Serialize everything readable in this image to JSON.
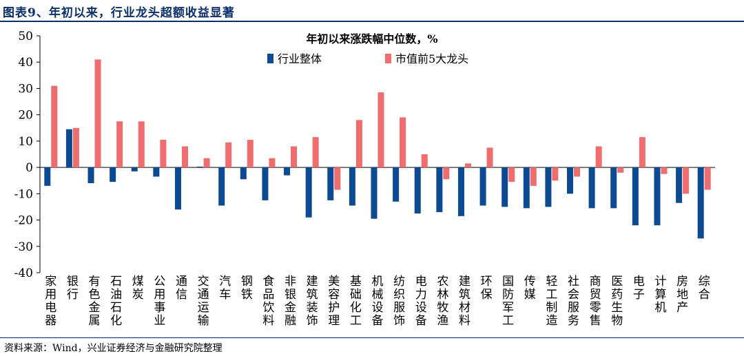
{
  "figure_title": "图表9、年初以来，行业龙头超额收益显著",
  "source": "资料来源：Wind，兴业证券经济与金融研究院整理",
  "colors": {
    "industry": "#0c4a93",
    "leaders": "#ef6c6f",
    "title": "#0a2f6b"
  },
  "chart_data": {
    "type": "bar",
    "title": "年初以来涨跌幅中位数，%",
    "xlabel": "",
    "ylabel": "",
    "ylim": [
      -40,
      50
    ],
    "yticks": [
      -40,
      -30,
      -20,
      -10,
      0,
      10,
      20,
      30,
      40,
      50
    ],
    "ytick_labels": [
      "-40",
      "-30",
      "-20",
      "-10",
      "0",
      "10",
      "20",
      "30",
      "40",
      "50"
    ],
    "legend_position": "top-center",
    "grid": false,
    "categories": [
      "家用电器",
      "银行",
      "有色金属",
      "石油石化",
      "煤炭",
      "公用事业",
      "通信",
      "交通运输",
      "汽车",
      "钢铁",
      "食品饮料",
      "非银金融",
      "建筑装饰",
      "美容护理",
      "基础化工",
      "机械设备",
      "纺织服饰",
      "电力设备",
      "农林牧渔",
      "建筑材料",
      "环保",
      "国防军工",
      "传媒",
      "轻工制造",
      "社会服务",
      "商贸零售",
      "医药生物",
      "电子",
      "计算机",
      "房地产",
      "综合"
    ],
    "series": [
      {
        "name": "行业整体",
        "values": [
          -7,
          14.5,
          -6,
          -5.5,
          -1.5,
          -3.5,
          -16,
          0.3,
          -14.5,
          -4.5,
          -12.5,
          -3,
          -19,
          -12.5,
          -14.5,
          -19.5,
          -13,
          -17.5,
          -17,
          -18.5,
          -14.5,
          -15,
          -15.5,
          -15,
          -10,
          -15.5,
          -15.5,
          -22,
          -22,
          -13.5,
          -27
        ]
      },
      {
        "name": "市值前5大龙头",
        "values": [
          31,
          15,
          41,
          17.5,
          17.5,
          10.5,
          8,
          3.5,
          9.5,
          10.5,
          3.5,
          8,
          11.5,
          -8.5,
          18,
          28.5,
          19,
          5,
          -4.5,
          1.5,
          7.5,
          -5.5,
          -7,
          -5,
          -3.5,
          8,
          -2,
          11.5,
          -2.5,
          -10,
          -8.5
        ]
      }
    ]
  }
}
